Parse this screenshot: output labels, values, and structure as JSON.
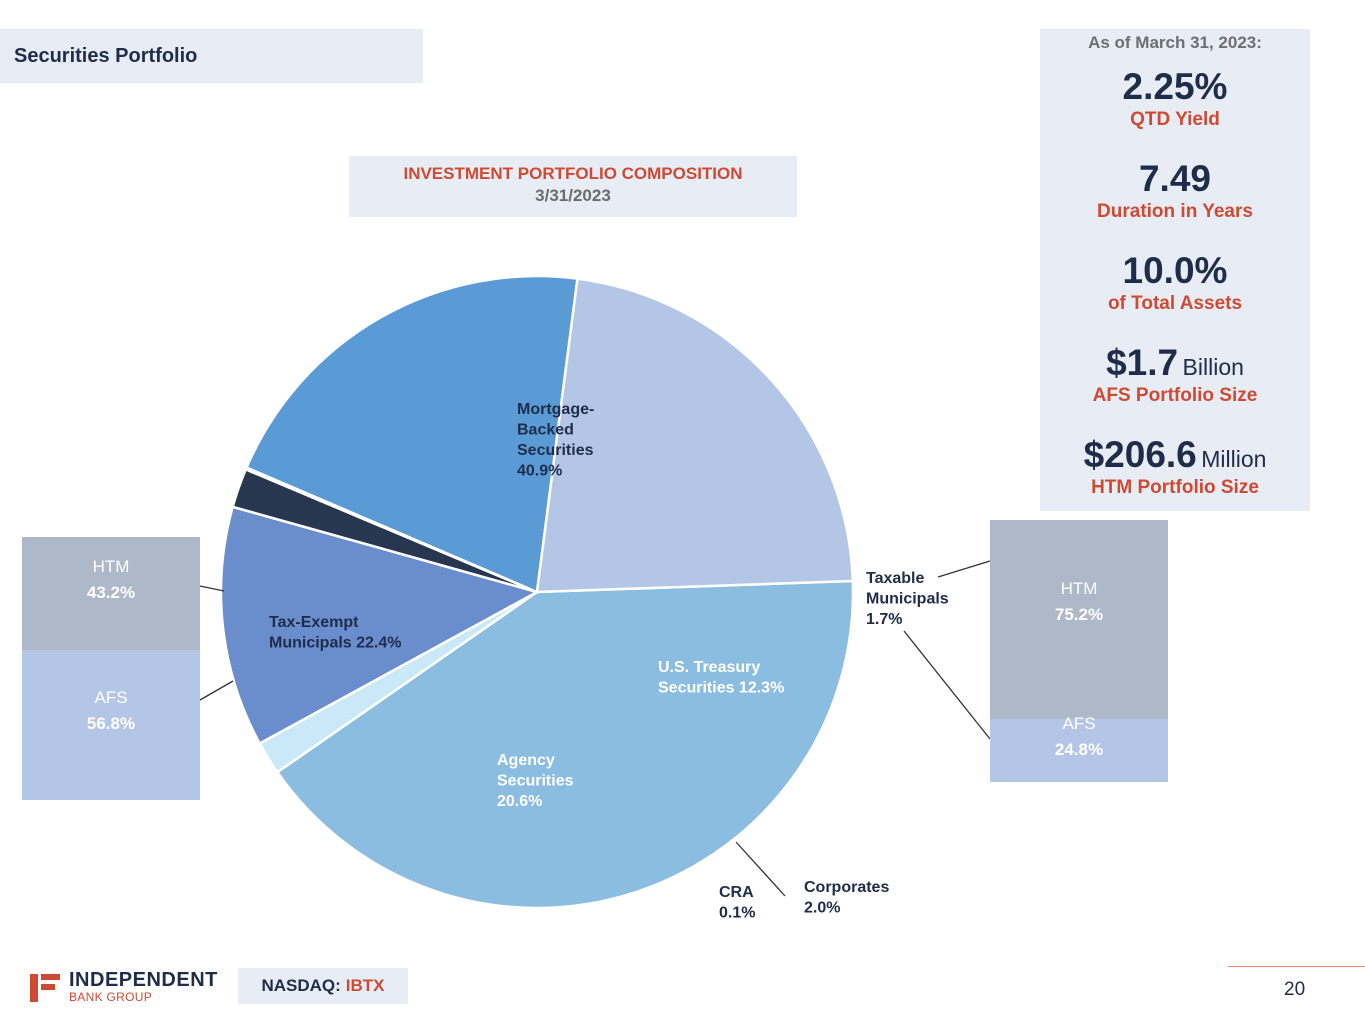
{
  "header": {
    "title": "Securities Portfolio"
  },
  "chart_title": {
    "line1": "INVESTMENT PORTFOLIO COMPOSITION",
    "line2": "3/31/2023"
  },
  "stats": {
    "as_of": "As of March 31, 2023:",
    "items": [
      {
        "value": "2.25%",
        "unit": "",
        "label": "QTD Yield"
      },
      {
        "value": "7.49",
        "unit": "",
        "label": "Duration in Years"
      },
      {
        "value": "10.0%",
        "unit": "",
        "label": "of Total Assets"
      },
      {
        "value": "$1.7",
        "unit": "Billion",
        "label": "AFS Portfolio Size"
      },
      {
        "value": "$206.6",
        "unit": "Million",
        "label": "HTM Portfolio Size"
      }
    ]
  },
  "chart_data": [
    {
      "type": "pie",
      "title": "INVESTMENT PORTFOLIO COMPOSITION",
      "subtitle": "3/31/2023",
      "slices": [
        {
          "name": "Mortgage-Backed Securities",
          "label_lines": [
            "Mortgage-",
            "Backed",
            "Securities",
            "40.9%"
          ],
          "value": 40.9,
          "color": "#8abddf",
          "text_color": "#1f2d4a"
        },
        {
          "name": "Taxable Municipals",
          "label_lines": [
            "Taxable",
            "Municipals",
            "1.7%"
          ],
          "value": 1.7,
          "color": "#c9e9f8",
          "text_color": "#1f2d4a"
        },
        {
          "name": "U.S. Treasury Securities",
          "label_lines": [
            "U.S. Treasury",
            "Securities 12.3%"
          ],
          "value": 12.3,
          "color": "#6a8dce",
          "text_color": "#ffffff"
        },
        {
          "name": "Corporates",
          "label_lines": [
            "Corporates",
            "2.0%"
          ],
          "value": 2.0,
          "color": "#283650",
          "text_color": "#1f2d4a"
        },
        {
          "name": "CRA",
          "label_lines": [
            "CRA",
            "0.1%"
          ],
          "value": 0.1,
          "color": "#dde5f2",
          "text_color": "#1f2d4a"
        },
        {
          "name": "Agency Securities",
          "label_lines": [
            "Agency",
            "Securities",
            "20.6%"
          ],
          "value": 20.6,
          "color": "#5b9bd5",
          "text_color": "#ffffff"
        },
        {
          "name": "Tax-Exempt Municipals",
          "label_lines": [
            "Tax-Exempt",
            "Municipals 22.4%"
          ],
          "value": 22.4,
          "color": "#b4c6e6",
          "text_color": "#1f2d4a"
        }
      ]
    },
    {
      "type": "bar",
      "stacked": true,
      "for_slice": "Tax-Exempt Municipals",
      "segments": [
        {
          "name": "HTM",
          "value_label": "43.2%",
          "value": 43.2,
          "color": "#adb8c9"
        },
        {
          "name": "AFS",
          "value_label": "56.8%",
          "value": 56.8,
          "color": "#b4c6e6"
        }
      ]
    },
    {
      "type": "bar",
      "stacked": true,
      "for_slice": "Taxable Municipals",
      "segments": [
        {
          "name": "HTM",
          "value_label": "75.2%",
          "value": 75.2,
          "color": "#adb8c9"
        },
        {
          "name": "AFS",
          "value_label": "24.8%",
          "value": 24.8,
          "color": "#b4c6e6"
        }
      ]
    }
  ],
  "footer": {
    "logo_line1": "INDEPENDENT",
    "logo_line2": "BANK GROUP",
    "exchange": "NASDAQ:",
    "ticker": "IBTX",
    "page_number": "20"
  },
  "colors": {
    "navy": "#1f2d4a",
    "accent_red": "#d04a32",
    "panel_bg": "#e8ecf5"
  }
}
